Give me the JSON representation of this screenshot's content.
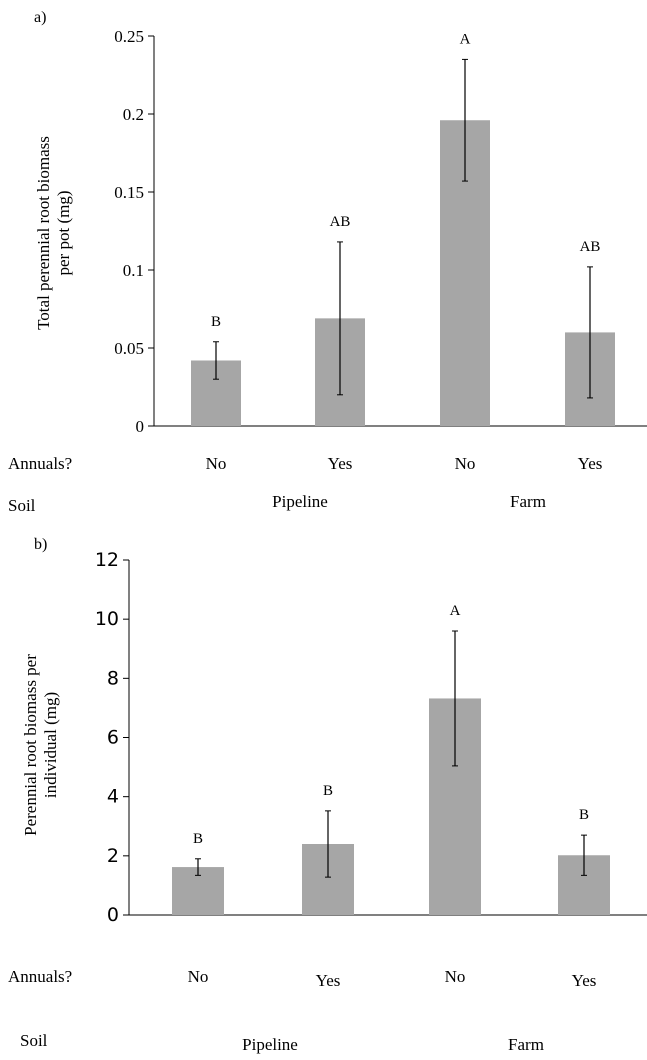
{
  "colors": {
    "bar": "#a6a6a6",
    "axis": "#000000",
    "error": "#000000"
  },
  "chart_data": [
    {
      "type": "bar",
      "panel_label": "a)",
      "ylabel_lines": [
        "Total perennial root biomass",
        "per pot (mg)"
      ],
      "ylim": [
        0,
        0.25
      ],
      "yticks": [
        "0",
        "0.05",
        "0.1",
        "0.15",
        "0.2",
        "0.25"
      ],
      "ytick_values": [
        0,
        0.05,
        0.1,
        0.15,
        0.2,
        0.25
      ],
      "annuals_label": "Annuals?",
      "soil_label": "Soil",
      "categories": [
        "No",
        "Yes",
        "No",
        "Yes"
      ],
      "groups": [
        "Pipeline",
        "Farm"
      ],
      "values": [
        0.042,
        0.069,
        0.196,
        0.06
      ],
      "errors": [
        0.012,
        0.049,
        0.039,
        0.042
      ],
      "letters": [
        "B",
        "AB",
        "A",
        "AB"
      ],
      "grid": false
    },
    {
      "type": "bar",
      "panel_label": "b)",
      "ylabel_lines": [
        "Perennial root biomass per",
        "individual (mg)"
      ],
      "ylim": [
        0,
        12
      ],
      "yticks": [
        "0",
        "2",
        "4",
        "6",
        "8",
        "10",
        "12"
      ],
      "ytick_values": [
        0,
        2,
        4,
        6,
        8,
        10,
        12
      ],
      "annuals_label": "Annuals?",
      "soil_label": "Soil",
      "categories": [
        "No",
        "Yes",
        "No",
        "Yes"
      ],
      "groups": [
        "Pipeline",
        "Farm"
      ],
      "values": [
        1.62,
        2.4,
        7.32,
        2.02
      ],
      "errors": [
        0.28,
        1.12,
        2.28,
        0.68
      ],
      "letters": [
        "B",
        "B",
        "A",
        "B"
      ],
      "grid": false
    }
  ]
}
